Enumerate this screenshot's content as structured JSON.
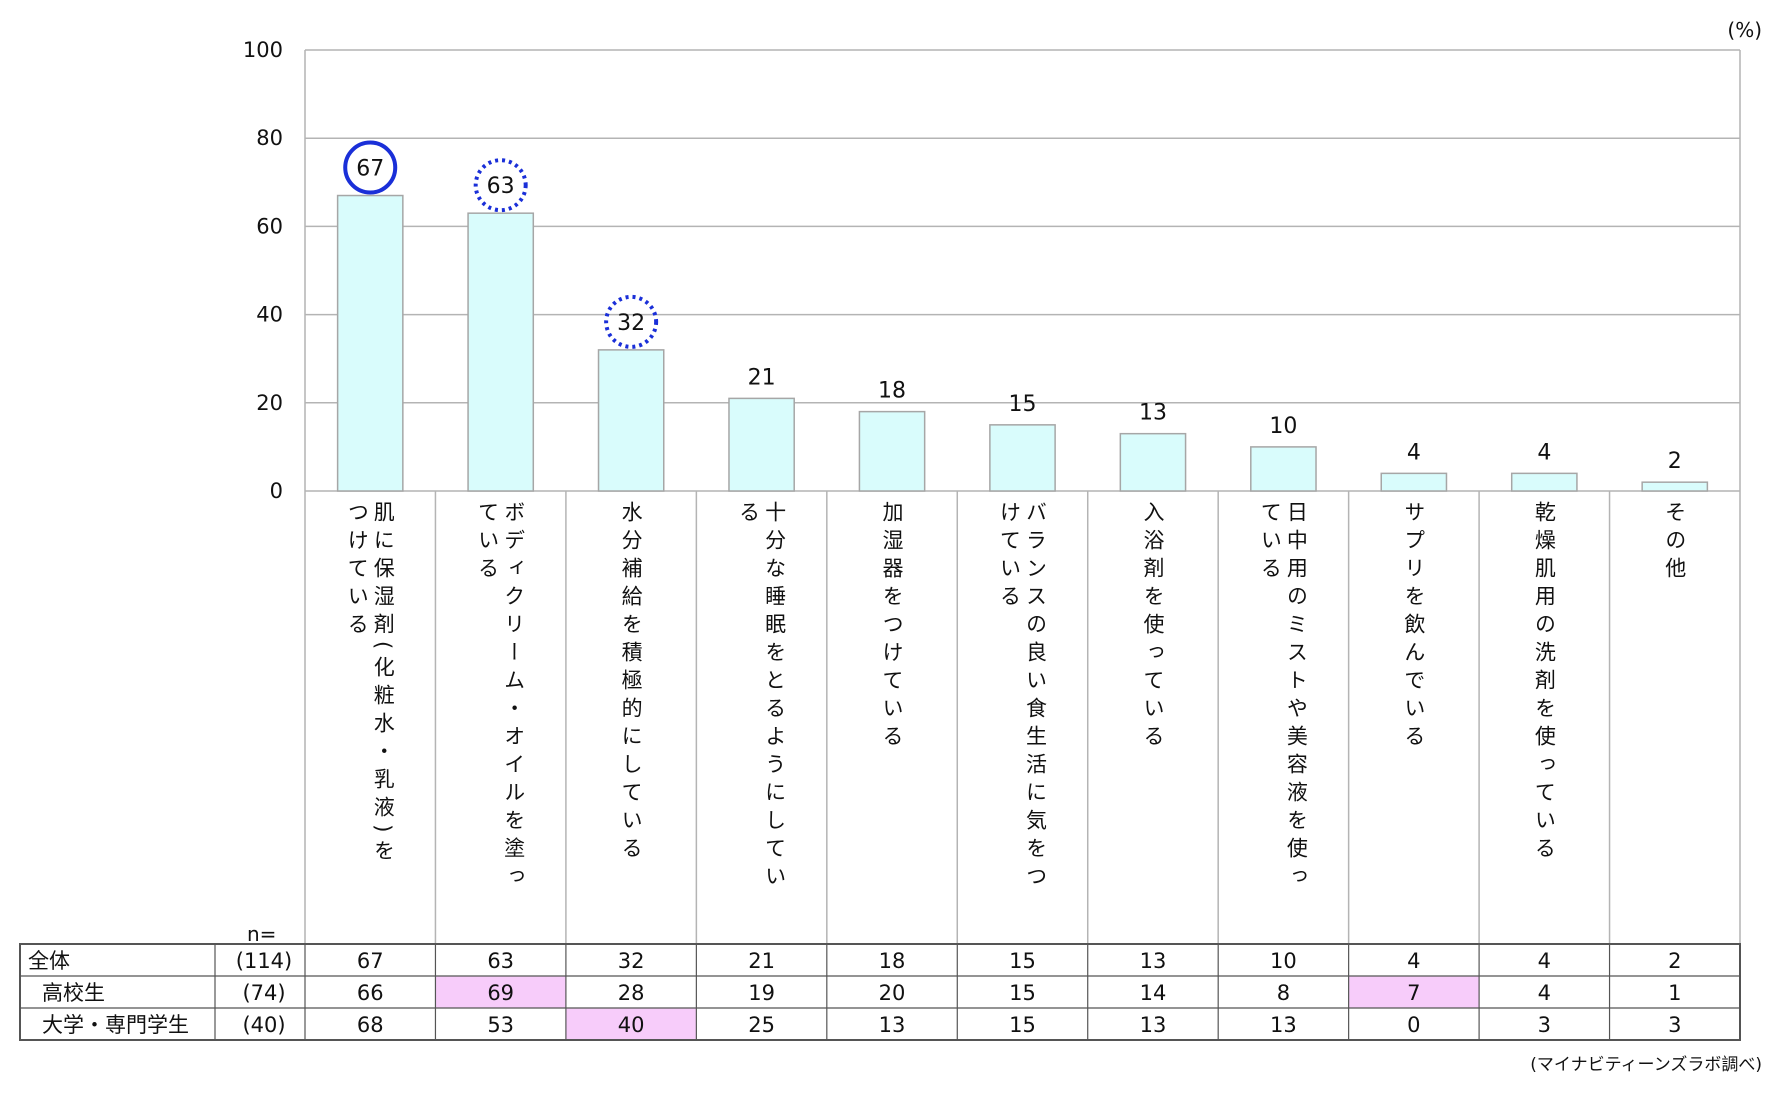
{
  "unit_label": "(%)",
  "source_label": "(マイナビティーンズラボ調べ)",
  "n_label": "n=",
  "colors": {
    "bar_fill": "#d9fcfc",
    "bar_stroke": "#a6a6a6",
    "grid": "#b4b4b4",
    "highlight_cell": "#f7ccfa",
    "circle": "#1a2fd8"
  },
  "chart_data": {
    "type": "bar",
    "ylim": [
      0,
      100
    ],
    "yticks": [
      0,
      20,
      40,
      60,
      80,
      100
    ],
    "grid": true,
    "categories": [
      [
        "肌に保湿剤(化粧水・乳液)を",
        "つけている"
      ],
      [
        "ボディクリーム・オイルを塗っ",
        "ている"
      ],
      [
        "水分補給を積極的にしている"
      ],
      [
        "十分な睡眠をとるようにしてい",
        "る"
      ],
      [
        "加湿器をつけている"
      ],
      [
        "バランスの良い食生活に気をつ",
        "けている"
      ],
      [
        "入浴剤を使っている"
      ],
      [
        "日中用のミストや美容液を使っ",
        "ている"
      ],
      [
        "サプリを飲んでいる"
      ],
      [
        "乾燥肌用の洗剤を使っている"
      ],
      [
        "その他"
      ]
    ],
    "values": [
      67,
      63,
      32,
      21,
      18,
      15,
      13,
      10,
      4,
      4,
      2
    ],
    "value_labels": [
      "67",
      "63",
      "32",
      "21",
      "18",
      "15",
      "13",
      "10",
      "4",
      "4",
      "2"
    ],
    "circled": [
      {
        "index": 0,
        "style": "solid"
      },
      {
        "index": 1,
        "style": "dotted"
      },
      {
        "index": 2,
        "style": "dotted"
      }
    ]
  },
  "table": {
    "rows": [
      {
        "label": "全体",
        "n": "(114)",
        "values": [
          "67",
          "63",
          "32",
          "21",
          "18",
          "15",
          "13",
          "10",
          "4",
          "4",
          "2"
        ],
        "highlight": []
      },
      {
        "label": "高校生",
        "n": "(74)",
        "values": [
          "66",
          "69",
          "28",
          "19",
          "20",
          "15",
          "14",
          "8",
          "7",
          "4",
          "1"
        ],
        "highlight": [
          1,
          8
        ]
      },
      {
        "label": "大学・専門学生",
        "n": "(40)",
        "values": [
          "68",
          "53",
          "40",
          "25",
          "13",
          "15",
          "13",
          "13",
          "0",
          "3",
          "3"
        ],
        "highlight": [
          2
        ]
      }
    ]
  }
}
